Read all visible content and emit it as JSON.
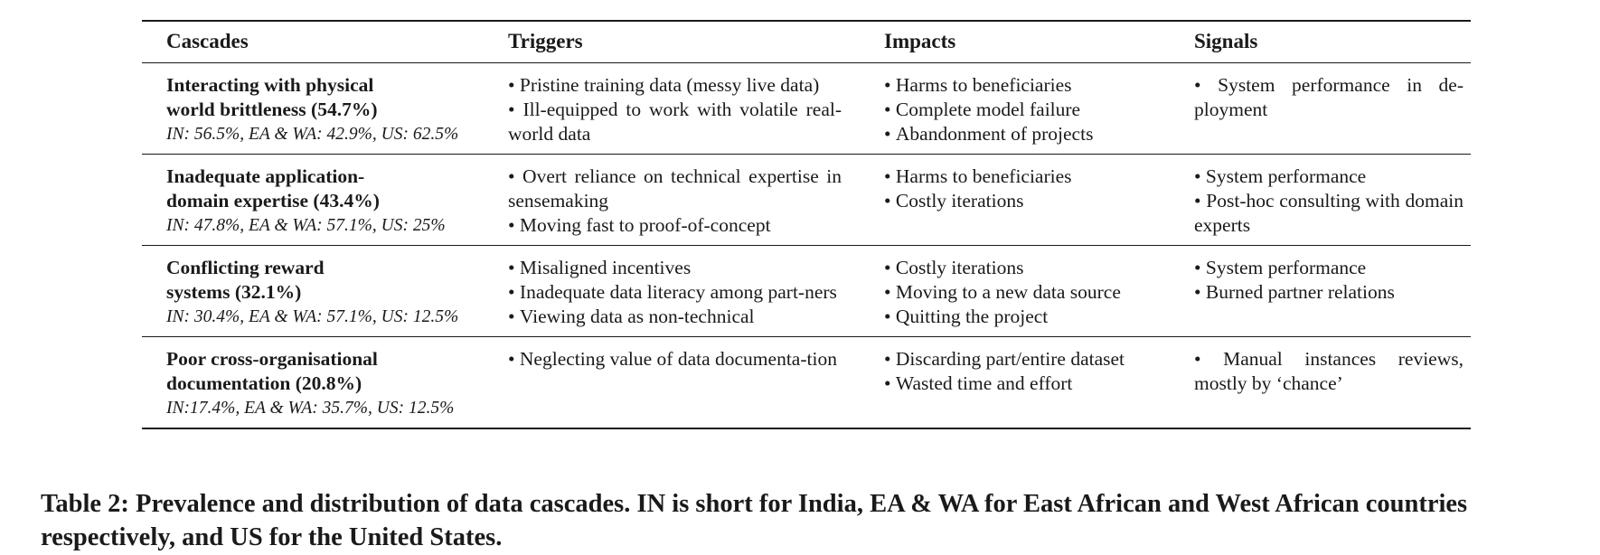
{
  "table": {
    "headers": [
      "Cascades",
      "Triggers",
      "Impacts",
      "Signals"
    ],
    "rows": [
      {
        "cascade_lines": [
          "Interacting with physical",
          "world brittleness (54.7%)"
        ],
        "distribution": "IN: 56.5%, EA & WA: 42.9%, US: 62.5%",
        "triggers": [
          "Pristine training data (messy live data)",
          "Ill-equipped to work with volatile real-world data"
        ],
        "impacts": [
          "Harms to beneficiaries",
          "Complete model failure",
          "Abandonment of projects"
        ],
        "signals": [
          "System performance in de-ployment"
        ]
      },
      {
        "cascade_lines": [
          "Inadequate application-",
          "domain expertise (43.4%)"
        ],
        "distribution": "IN: 47.8%, EA & WA: 57.1%, US: 25%",
        "triggers": [
          "Overt reliance on technical expertise in sensemaking",
          "Moving fast to proof-of-concept"
        ],
        "impacts": [
          "Harms to beneficiaries",
          "Costly iterations"
        ],
        "signals": [
          "System performance",
          "Post-hoc consulting with domain experts"
        ]
      },
      {
        "cascade_lines": [
          "Conflicting reward",
          "systems (32.1%)"
        ],
        "distribution": "IN: 30.4%, EA & WA: 57.1%, US: 12.5%",
        "triggers": [
          "Misaligned incentives",
          "Inadequate data literacy among part-ners",
          "Viewing data as non-technical"
        ],
        "impacts": [
          "Costly iterations",
          "Moving to a new data source",
          "Quitting the project"
        ],
        "signals": [
          "System performance",
          "Burned partner relations"
        ]
      },
      {
        "cascade_lines": [
          "Poor cross-organisational",
          "documentation (20.8%)"
        ],
        "distribution": "IN:17.4%, EA & WA: 35.7%, US: 12.5%",
        "triggers": [
          "Neglecting value of data documenta-tion"
        ],
        "impacts": [
          "Discarding part/entire dataset",
          "Wasted time and effort"
        ],
        "signals": [
          "Manual instances reviews, mostly by ‘chance’"
        ]
      }
    ]
  },
  "caption": "Table 2: Prevalence and distribution of data cascades. IN is short for India, EA & WA for East African and West African countries respectively, and US for the United States."
}
